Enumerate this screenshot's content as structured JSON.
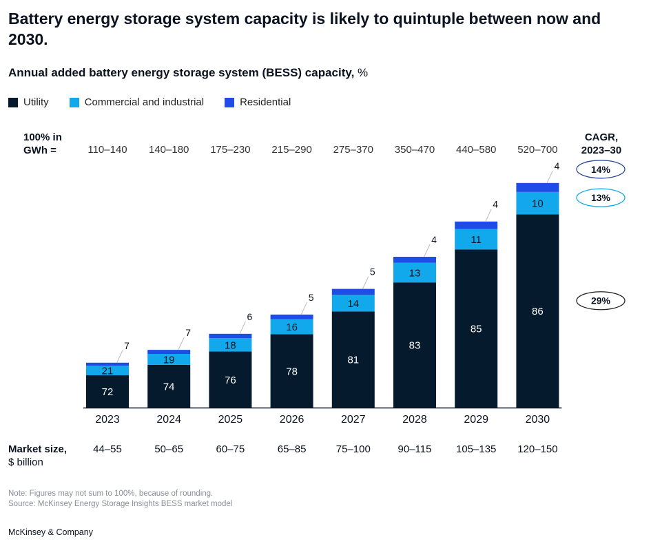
{
  "title": "Battery energy storage system capacity is likely to quintuple between now and 2030.",
  "subtitle": "Annual added battery energy storage system (BESS) capacity,",
  "subtitle_unit": "%",
  "legend": [
    {
      "label": "Utility",
      "color": "#061a2e"
    },
    {
      "label": "Commercial and industrial",
      "color": "#12a9ec"
    },
    {
      "label": "Residential",
      "color": "#1f4be6"
    }
  ],
  "gwh_label_line1": "100% in",
  "gwh_label_line2": "GWh =",
  "cagr_label_line1": "CAGR,",
  "cagr_label_line2": "2023–30",
  "market_label_line1": "Market size,",
  "market_label_line2": "$ billion",
  "note_line1": "Note: Figures may not sum to 100%, because of rounding.",
  "note_line2": "Source: McKinsey Energy Storage Insights BESS market model",
  "brand": "McKinsey & Company",
  "chart_data": {
    "type": "bar",
    "stacked": true,
    "categories": [
      "2023",
      "2024",
      "2025",
      "2026",
      "2027",
      "2028",
      "2029",
      "2030"
    ],
    "series": [
      {
        "name": "Utility",
        "values": [
          72,
          74,
          76,
          78,
          81,
          83,
          85,
          86
        ],
        "color": "#061a2e"
      },
      {
        "name": "Commercial and industrial",
        "values": [
          21,
          19,
          18,
          16,
          14,
          13,
          11,
          10
        ],
        "color": "#12a9ec"
      },
      {
        "name": "Residential",
        "values": [
          7,
          7,
          6,
          5,
          5,
          4,
          4,
          4
        ],
        "color": "#1f4be6"
      }
    ],
    "gwh_ranges": [
      "110–140",
      "140–180",
      "175–230",
      "215–290",
      "275–370",
      "350–470",
      "440–580",
      "520–700"
    ],
    "gwh_min": [
      110,
      140,
      175,
      215,
      275,
      350,
      440,
      520
    ],
    "gwh_max": [
      140,
      180,
      230,
      290,
      370,
      470,
      580,
      700
    ],
    "market_size": [
      "44–55",
      "50–65",
      "60–75",
      "65–85",
      "75–100",
      "90–115",
      "105–135",
      "120–150"
    ],
    "cagr": [
      {
        "series": "Residential",
        "value": "14%",
        "border": "#2a4a9a"
      },
      {
        "series": "Commercial and industrial",
        "value": "13%",
        "border": "#12a9ec"
      },
      {
        "series": "Utility",
        "value": "29%",
        "border": "#222222"
      }
    ],
    "legend_position": "top-left",
    "grid": false
  }
}
